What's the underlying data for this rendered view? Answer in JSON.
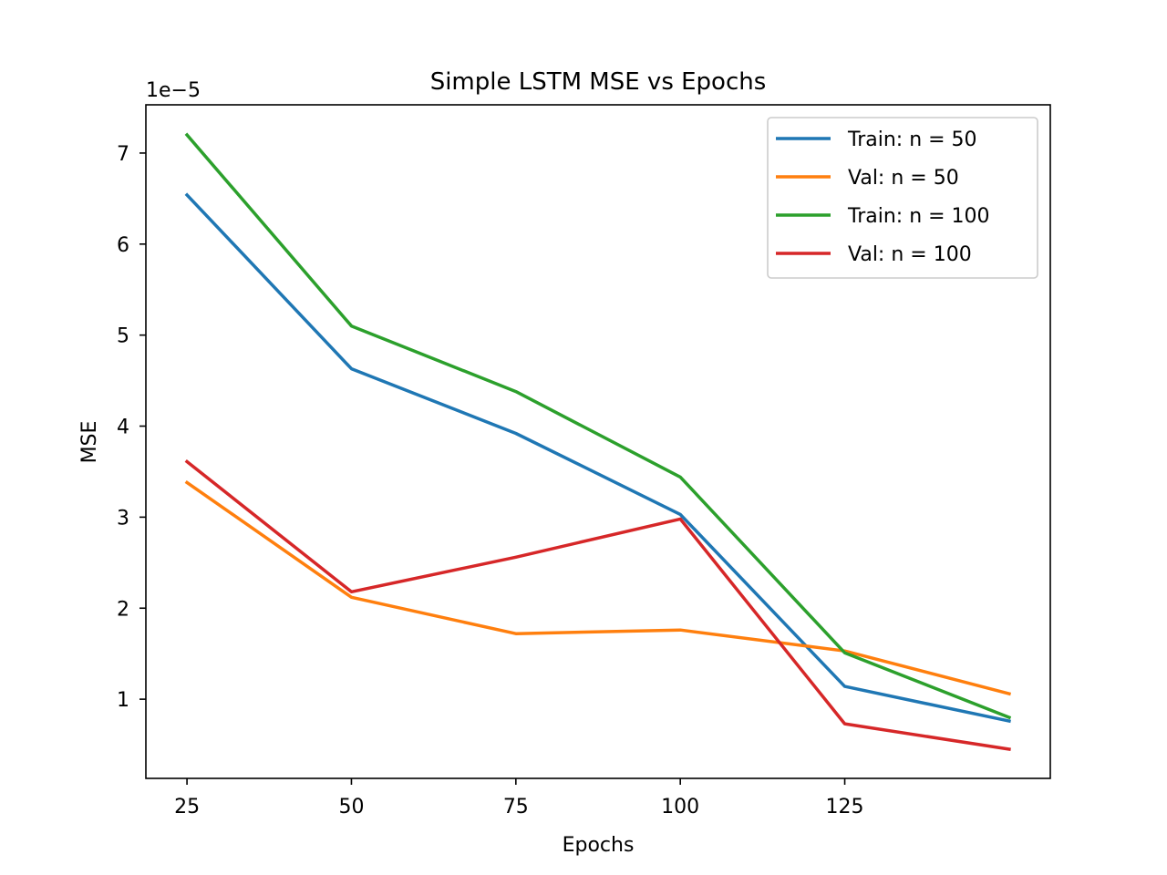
{
  "chart_data": {
    "type": "line",
    "title": "Simple LSTM MSE vs Epochs",
    "xlabel": "Epochs",
    "ylabel": "MSE",
    "y_offset_label": "1e−5",
    "x": [
      25,
      50,
      75,
      100,
      125,
      150
    ],
    "xticks": [
      25,
      50,
      75,
      100,
      125
    ],
    "yticks": [
      1,
      2,
      3,
      4,
      5,
      6,
      7
    ],
    "xlim": [
      18.75,
      156.25
    ],
    "ylim": [
      0.13,
      7.53
    ],
    "grid": false,
    "legend_position": "top-right",
    "series": [
      {
        "name": "Train: n = 50",
        "color": "#1f77b4",
        "values": [
          6.54,
          4.63,
          3.92,
          3.03,
          1.14,
          0.76
        ]
      },
      {
        "name": "Val: n = 50",
        "color": "#ff7f0e",
        "values": [
          3.38,
          2.12,
          1.72,
          1.76,
          1.53,
          1.06
        ]
      },
      {
        "name": "Train: n = 100",
        "color": "#2ca02c",
        "values": [
          7.2,
          5.1,
          4.38,
          3.44,
          1.51,
          0.8
        ]
      },
      {
        "name": "Val: n = 100",
        "color": "#d62728",
        "values": [
          3.61,
          2.18,
          2.56,
          2.98,
          0.73,
          0.45
        ]
      }
    ]
  }
}
